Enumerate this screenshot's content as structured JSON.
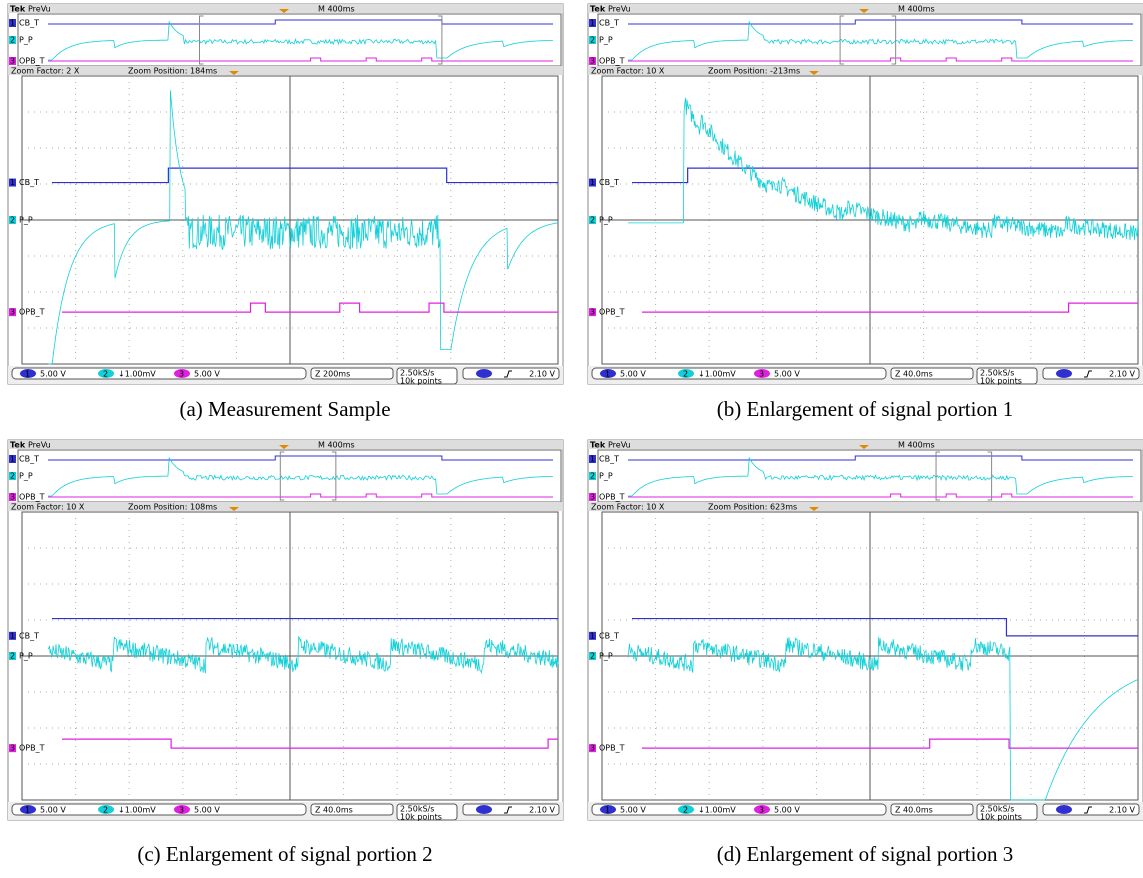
{
  "panels": [
    {
      "caption": "(a) Measurement Sample",
      "brand": "Tek",
      "mode": "PreVu",
      "timebase": "M 400ms",
      "zoom_factor": "Zoom Factor: 2 X",
      "zoom_position": "Zoom Position: 184ms",
      "channels": [
        {
          "number": "1",
          "label": "CB_T",
          "scale": "5.00 V"
        },
        {
          "number": "2",
          "label": "P_P",
          "scale": "↓1.00mV"
        },
        {
          "number": "3",
          "label": "OPB_T",
          "scale": "5.00 V"
        }
      ],
      "zoom_scale": "Z 200ms",
      "sample_rate": "2.50kS/s",
      "record_length": "10k points",
      "trigger_level": "2.10 V"
    },
    {
      "caption": "(b) Enlargement of signal portion 1",
      "brand": "Tek",
      "mode": "PreVu",
      "timebase": "M 400ms",
      "zoom_factor": "Zoom Factor: 10 X",
      "zoom_position": "Zoom Position: -213ms",
      "channels": [
        {
          "number": "1",
          "label": "CB_T",
          "scale": "5.00 V"
        },
        {
          "number": "2",
          "label": "P_P",
          "scale": "↓1.00mV"
        },
        {
          "number": "3",
          "label": "OPB_T",
          "scale": "5.00 V"
        }
      ],
      "zoom_scale": "Z 40.0ms",
      "sample_rate": "2.50kS/s",
      "record_length": "10k points",
      "trigger_level": "2.10 V"
    },
    {
      "caption": "(c) Enlargement of signal portion 2",
      "brand": "Tek",
      "mode": "PreVu",
      "timebase": "M 400ms",
      "zoom_factor": "Zoom Factor: 10 X",
      "zoom_position": "Zoom Position: 108ms",
      "channels": [
        {
          "number": "1",
          "label": "CB_T",
          "scale": "5.00 V"
        },
        {
          "number": "2",
          "label": "P_P",
          "scale": "↓1.00mV"
        },
        {
          "number": "3",
          "label": "OPB_T",
          "scale": "5.00 V"
        }
      ],
      "zoom_scale": "Z 40.0ms",
      "sample_rate": "2.50kS/s",
      "record_length": "10k points",
      "trigger_level": "2.10 V"
    },
    {
      "caption": "(d) Enlargement of signal portion 3",
      "brand": "Tek",
      "mode": "PreVu",
      "timebase": "M 400ms",
      "zoom_factor": "Zoom Factor: 10 X",
      "zoom_position": "Zoom Position: 623ms",
      "channels": [
        {
          "number": "1",
          "label": "CB_T",
          "scale": "5.00 V"
        },
        {
          "number": "2",
          "label": "P_P",
          "scale": "↓1.00mV"
        },
        {
          "number": "3",
          "label": "OPB_T",
          "scale": "5.00 V"
        }
      ],
      "zoom_scale": "Z 40.0ms",
      "sample_rate": "2.50kS/s",
      "record_length": "10k points",
      "trigger_level": "2.10 V"
    }
  ]
}
